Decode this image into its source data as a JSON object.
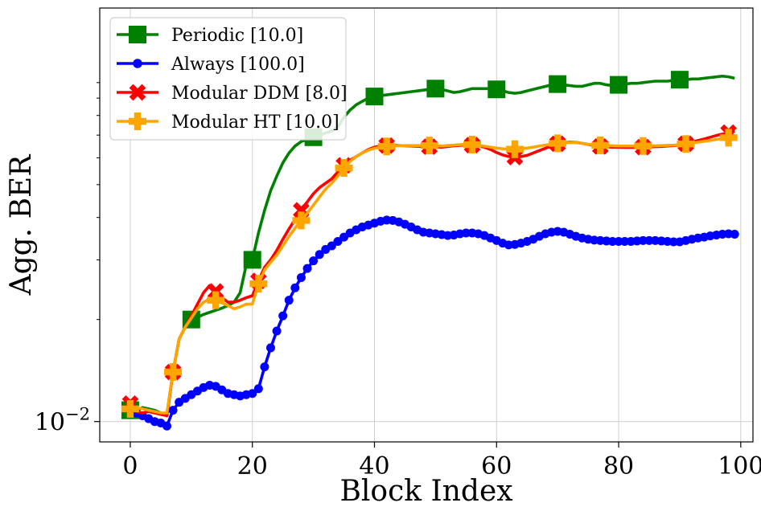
{
  "chart_data": {
    "type": "line",
    "title": "",
    "xlabel": "Block Index",
    "ylabel": "Agg. BER",
    "xlim": [
      -5,
      102
    ],
    "ylim_log10": [
      -2.06,
      -0.78
    ],
    "xticks": [
      0,
      20,
      40,
      60,
      80,
      100
    ],
    "xtick_labels": [
      "0",
      "20",
      "40",
      "60",
      "80",
      "100"
    ],
    "yticks_major": [
      0.01
    ],
    "ytick_major_labels": [
      {
        "base": "10",
        "exp": "−2"
      }
    ],
    "yticks_minor": [
      0.02,
      0.03,
      0.04,
      0.05,
      0.06,
      0.07,
      0.08,
      0.09,
      0.1,
      0.2
    ],
    "grid": true,
    "legend_position": "upper-left",
    "series": [
      {
        "name": "Periodic [10.0]",
        "color": "#008000",
        "marker": "square",
        "x": [
          0,
          1,
          2,
          3,
          4,
          5,
          6,
          7,
          8,
          9,
          10,
          11,
          12,
          13,
          14,
          15,
          16,
          17,
          18,
          19,
          20,
          21,
          22,
          23,
          24,
          25,
          26,
          27,
          28,
          29,
          30,
          31,
          32,
          33,
          34,
          35,
          36,
          37,
          38,
          39,
          40,
          41,
          42,
          43,
          44,
          45,
          46,
          47,
          48,
          49,
          50,
          51,
          52,
          53,
          54,
          55,
          56,
          57,
          58,
          59,
          60,
          61,
          62,
          63,
          64,
          65,
          66,
          67,
          68,
          69,
          70,
          71,
          72,
          73,
          74,
          75,
          76,
          77,
          78,
          79,
          80,
          81,
          82,
          83,
          84,
          85,
          86,
          87,
          88,
          89,
          90,
          91,
          92,
          93,
          94,
          95,
          96,
          97,
          98,
          99
        ],
        "y": [
          0.0108,
          0.0107,
          0.011,
          0.0109,
          0.0108,
          0.0106,
          0.0104,
          0.014,
          0.0175,
          0.019,
          0.02,
          0.0203,
          0.0207,
          0.021,
          0.0213,
          0.0216,
          0.022,
          0.0225,
          0.024,
          0.029,
          0.03,
          0.036,
          0.042,
          0.048,
          0.053,
          0.058,
          0.062,
          0.065,
          0.067,
          0.068,
          0.069,
          0.07,
          0.071,
          0.072,
          0.074,
          0.079,
          0.083,
          0.086,
          0.088,
          0.09,
          0.091,
          0.0915,
          0.092,
          0.0925,
          0.093,
          0.0935,
          0.094,
          0.0945,
          0.095,
          0.0955,
          0.096,
          0.0955,
          0.0945,
          0.0935,
          0.094,
          0.095,
          0.096,
          0.096,
          0.096,
          0.096,
          0.0955,
          0.0945,
          0.0935,
          0.093,
          0.0935,
          0.0945,
          0.0955,
          0.0965,
          0.0975,
          0.0985,
          0.099,
          0.0985,
          0.098,
          0.0975,
          0.0975,
          0.0985,
          0.0995,
          0.0995,
          0.0985,
          0.098,
          0.0985,
          0.099,
          0.0995,
          0.0995,
          0.1,
          0.1005,
          0.101,
          0.101,
          0.101,
          0.1015,
          0.102,
          0.102,
          0.1025,
          0.1025,
          0.103,
          0.1035,
          0.104,
          0.1045,
          0.104,
          0.103
        ],
        "marker_every": 10
      },
      {
        "name": "Always [100.0]",
        "color": "#0000ff",
        "marker": "circle",
        "x": [
          0,
          1,
          2,
          3,
          4,
          5,
          6,
          7,
          8,
          9,
          10,
          11,
          12,
          13,
          14,
          15,
          16,
          17,
          18,
          19,
          20,
          21,
          22,
          23,
          24,
          25,
          26,
          27,
          28,
          29,
          30,
          31,
          32,
          33,
          34,
          35,
          36,
          37,
          38,
          39,
          40,
          41,
          42,
          43,
          44,
          45,
          46,
          47,
          48,
          49,
          50,
          51,
          52,
          53,
          54,
          55,
          56,
          57,
          58,
          59,
          60,
          61,
          62,
          63,
          64,
          65,
          66,
          67,
          68,
          69,
          70,
          71,
          72,
          73,
          74,
          75,
          76,
          77,
          78,
          79,
          80,
          81,
          82,
          83,
          84,
          85,
          86,
          87,
          88,
          89,
          90,
          91,
          92,
          93,
          94,
          95,
          96,
          97,
          98,
          99
        ],
        "y": [
          0.0108,
          0.0106,
          0.0104,
          0.0102,
          0.01,
          0.0099,
          0.0097,
          0.0108,
          0.0114,
          0.0117,
          0.012,
          0.0123,
          0.0126,
          0.0128,
          0.0127,
          0.0124,
          0.0121,
          0.012,
          0.0119,
          0.012,
          0.0121,
          0.0125,
          0.0145,
          0.0165,
          0.0185,
          0.0205,
          0.0228,
          0.0248,
          0.0266,
          0.0283,
          0.0298,
          0.0311,
          0.0322,
          0.033,
          0.034,
          0.035,
          0.036,
          0.0368,
          0.0375,
          0.038,
          0.0385,
          0.039,
          0.0393,
          0.0392,
          0.0388,
          0.0382,
          0.0375,
          0.0368,
          0.0362,
          0.036,
          0.0358,
          0.0356,
          0.0354,
          0.0355,
          0.0358,
          0.036,
          0.036,
          0.0358,
          0.0354,
          0.0348,
          0.0342,
          0.0336,
          0.0332,
          0.0333,
          0.0336,
          0.034,
          0.0345,
          0.0352,
          0.0358,
          0.0362,
          0.0364,
          0.0362,
          0.0357,
          0.0352,
          0.0348,
          0.0345,
          0.0343,
          0.0342,
          0.0341,
          0.034,
          0.034,
          0.034,
          0.034,
          0.0341,
          0.0342,
          0.0342,
          0.0342,
          0.0341,
          0.034,
          0.0339,
          0.0339,
          0.0342,
          0.0345,
          0.0348,
          0.035,
          0.0353,
          0.0355,
          0.0357,
          0.0358,
          0.0357
        ],
        "marker_every": 1
      },
      {
        "name": "Modular DDM [8.0]",
        "color": "#ff0000",
        "marker": "x-thick",
        "x": [
          0,
          1,
          2,
          3,
          4,
          5,
          6,
          7,
          8,
          9,
          10,
          11,
          12,
          13,
          14,
          15,
          16,
          17,
          18,
          19,
          20,
          21,
          22,
          23,
          24,
          25,
          26,
          27,
          28,
          29,
          30,
          31,
          32,
          33,
          34,
          35,
          36,
          37,
          38,
          39,
          40,
          41,
          42,
          43,
          44,
          45,
          46,
          47,
          48,
          49,
          50,
          51,
          52,
          53,
          54,
          55,
          56,
          57,
          58,
          59,
          60,
          61,
          62,
          63,
          64,
          65,
          66,
          67,
          68,
          69,
          70,
          71,
          72,
          73,
          74,
          75,
          76,
          77,
          78,
          79,
          80,
          81,
          82,
          83,
          84,
          85,
          86,
          87,
          88,
          89,
          90,
          91,
          92,
          93,
          94,
          95,
          96,
          97,
          98,
          99
        ],
        "y": [
          0.0113,
          0.0107,
          0.0106,
          0.0107,
          0.0106,
          0.0105,
          0.0104,
          0.014,
          0.0175,
          0.019,
          0.0205,
          0.0222,
          0.024,
          0.0252,
          0.0242,
          0.0232,
          0.0225,
          0.0225,
          0.0228,
          0.0232,
          0.0235,
          0.026,
          0.0285,
          0.03,
          0.032,
          0.0345,
          0.037,
          0.0395,
          0.042,
          0.0445,
          0.047,
          0.049,
          0.0505,
          0.052,
          0.0545,
          0.057,
          0.059,
          0.0605,
          0.062,
          0.0635,
          0.0645,
          0.065,
          0.0652,
          0.0653,
          0.0652,
          0.0651,
          0.065,
          0.0649,
          0.0648,
          0.0647,
          0.0646,
          0.0645,
          0.0648,
          0.0651,
          0.0653,
          0.0655,
          0.0654,
          0.065,
          0.0645,
          0.0635,
          0.0622,
          0.0612,
          0.0605,
          0.0603,
          0.0605,
          0.061,
          0.062,
          0.063,
          0.064,
          0.065,
          0.066,
          0.0665,
          0.0668,
          0.0666,
          0.0662,
          0.0657,
          0.0652,
          0.0648,
          0.0646,
          0.0645,
          0.0645,
          0.0644,
          0.0644,
          0.0644,
          0.0645,
          0.0646,
          0.0647,
          0.0648,
          0.065,
          0.0652,
          0.0655,
          0.066,
          0.0668,
          0.0675,
          0.0682,
          0.069,
          0.0698,
          0.0705,
          0.0712,
          0.0718
        ],
        "marker_every": 7
      },
      {
        "name": "Modular HT [10.0]",
        "color": "#ffa500",
        "marker": "plus-thick",
        "x": [
          0,
          1,
          2,
          3,
          4,
          5,
          6,
          7,
          8,
          9,
          10,
          11,
          12,
          13,
          14,
          15,
          16,
          17,
          18,
          19,
          20,
          21,
          22,
          23,
          24,
          25,
          26,
          27,
          28,
          29,
          30,
          31,
          32,
          33,
          34,
          35,
          36,
          37,
          38,
          39,
          40,
          41,
          42,
          43,
          44,
          45,
          46,
          47,
          48,
          49,
          50,
          51,
          52,
          53,
          54,
          55,
          56,
          57,
          58,
          59,
          60,
          61,
          62,
          63,
          64,
          65,
          66,
          67,
          68,
          69,
          70,
          71,
          72,
          73,
          74,
          75,
          76,
          77,
          78,
          79,
          80,
          81,
          82,
          83,
          84,
          85,
          86,
          87,
          88,
          89,
          90,
          91,
          92,
          93,
          94,
          95,
          96,
          97,
          98,
          99
        ],
        "y": [
          0.0109,
          0.011,
          0.0109,
          0.0108,
          0.0107,
          0.0106,
          0.0106,
          0.014,
          0.0175,
          0.019,
          0.0202,
          0.0215,
          0.0225,
          0.023,
          0.0228,
          0.0224,
          0.022,
          0.0215,
          0.0218,
          0.0222,
          0.0222,
          0.0255,
          0.028,
          0.0295,
          0.031,
          0.033,
          0.0352,
          0.0372,
          0.0392,
          0.0412,
          0.0435,
          0.046,
          0.0485,
          0.0505,
          0.053,
          0.056,
          0.0585,
          0.0605,
          0.062,
          0.0632,
          0.064,
          0.0645,
          0.0648,
          0.065,
          0.0651,
          0.0652,
          0.0652,
          0.0652,
          0.0652,
          0.0652,
          0.0651,
          0.065,
          0.0652,
          0.0654,
          0.0656,
          0.0657,
          0.0656,
          0.0653,
          0.0649,
          0.0645,
          0.0641,
          0.0638,
          0.0636,
          0.0636,
          0.0638,
          0.0641,
          0.0645,
          0.065,
          0.0654,
          0.0658,
          0.0662,
          0.0665,
          0.0666,
          0.0665,
          0.0662,
          0.0658,
          0.0655,
          0.0653,
          0.0652,
          0.0651,
          0.065,
          0.065,
          0.065,
          0.065,
          0.065,
          0.065,
          0.0651,
          0.0652,
          0.0653,
          0.0654,
          0.0656,
          0.0659,
          0.0663,
          0.0667,
          0.0671,
          0.0675,
          0.068,
          0.0684,
          0.0688,
          0.0692
        ],
        "marker_every": 7
      }
    ]
  }
}
